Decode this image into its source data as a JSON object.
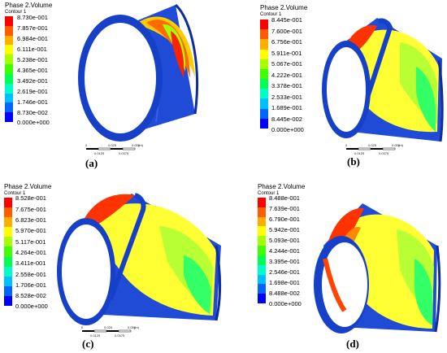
{
  "colors": [
    "#ff0000",
    "#ff5c00",
    "#ffae00",
    "#ffff00",
    "#a6ff00",
    "#3fff00",
    "#00ff50",
    "#00ffc8",
    "#00bfff",
    "#0064ff",
    "#0000ff"
  ],
  "panels": [
    {
      "title": "Phase 2.Volume",
      "subtitle": "Contour 1",
      "ticks": [
        "8.730e-001",
        "7.857e-001",
        "6.984e-001",
        "6.111e-001",
        "5.238e-001",
        "4.365e-001",
        "3.492e-001",
        "2.619e-001",
        "1.746e-001",
        "8.730e-002",
        "0.000e+000"
      ],
      "caption": "(a)",
      "scale": [
        "0",
        "0.025",
        "0.050",
        "(m)",
        "0.0125",
        "0.0375"
      ]
    },
    {
      "title": "Phase 2.Volume",
      "subtitle": "Contour 1",
      "ticks": [
        "8.445e-001",
        "7.600e-001",
        "6.756e-001",
        "5.911e-001",
        "5.067e-001",
        "4.222e-001",
        "3.378e-001",
        "2.533e-001",
        "1.689e-001",
        "8.445e-002",
        "0.000e+000"
      ],
      "caption": "(b)",
      "scale": [
        "0",
        "0.025",
        "0.050",
        "(m)",
        "0.0125",
        "0.0375"
      ]
    },
    {
      "title": "Phase 2.Volume",
      "subtitle": "Contour 1",
      "ticks": [
        "8.528e-001",
        "7.675e-001",
        "6.823e-001",
        "5.970e-001",
        "5.117e-001",
        "4.264e-001",
        "3.411e-001",
        "2.558e-001",
        "1.706e-001",
        "8.528e-002",
        "0.000e+000"
      ],
      "caption": "(c)",
      "scale": [
        "0",
        "0.025",
        "0.050",
        "(m)",
        "0.0125",
        "0.0375"
      ]
    },
    {
      "title": "Phase 2.Volume",
      "subtitle": "Contour 1",
      "ticks": [
        "8.488e-001",
        "7.639e-001",
        "6.790e-001",
        "5.942e-001",
        "5.093e-001",
        "4.244e-001",
        "3.395e-001",
        "2.546e-001",
        "1.698e-001",
        "8.488e-002",
        "0.000e+000"
      ],
      "caption": "(d)",
      "scale": []
    }
  ]
}
